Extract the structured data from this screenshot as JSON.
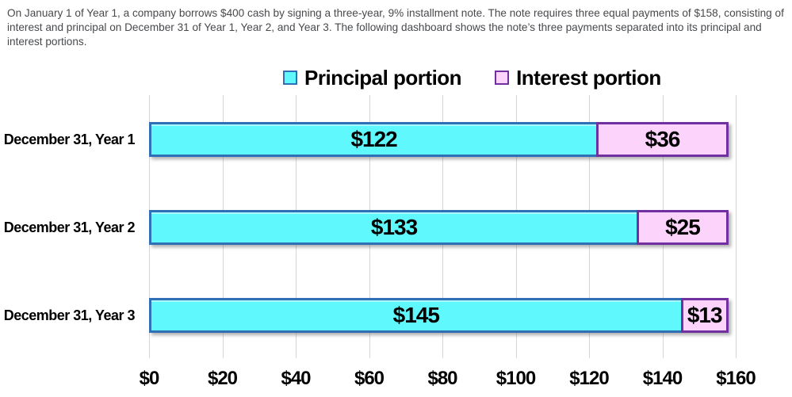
{
  "intro": {
    "text": "On January 1 of Year 1, a company borrows $400 cash by signing a three-year, 9% installment note. The note requires three equal payments of $158, consisting of interest and principal on December 31 of Year 1, Year 2, and Year 3. The following dashboard shows the note’s three payments separated into its principal and interest portions."
  },
  "chart_data": {
    "type": "bar",
    "orientation": "horizontal",
    "stacked": true,
    "categories": [
      "December 31, Year 1",
      "December 31, Year 2",
      "December 31, Year 3"
    ],
    "series": [
      {
        "name": "Principal portion",
        "key": "principal",
        "values": [
          122,
          133,
          145
        ],
        "value_labels": [
          "$122",
          "$133",
          "$145"
        ],
        "fill": "#5ff8fc",
        "border": "#2e6fb5"
      },
      {
        "name": "Interest portion",
        "key": "interest",
        "values": [
          36,
          25,
          13
        ],
        "value_labels": [
          "$36",
          "$25",
          "$13"
        ],
        "fill": "#fbd3fb",
        "border": "#7030a0"
      }
    ],
    "xlim": [
      0,
      160
    ],
    "xticks": [
      0,
      20,
      40,
      60,
      80,
      100,
      120,
      140,
      160
    ],
    "xtick_labels": [
      "$0",
      "$20",
      "$40",
      "$60",
      "$80",
      "$100",
      "$120",
      "$140",
      "$160"
    ],
    "grid": true,
    "gridline_color": "#d5d5d5",
    "legend_position": "top",
    "text_color": "#000000"
  }
}
